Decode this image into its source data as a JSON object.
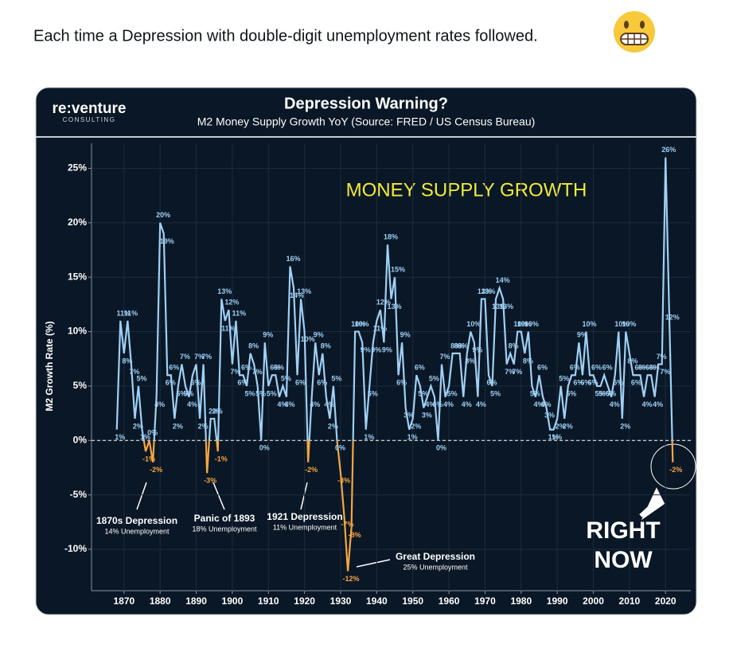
{
  "tweet_text": "Each time a Depression with double-digit unemployment rates followed.",
  "chart_data": {
    "type": "line",
    "brand": "re:venture",
    "brand_sub": "CONSULTING",
    "title": "Depression Warning?",
    "subtitle": "M2 Money Supply Growth YoY  (Source: FRED / US Census Bureau)",
    "y_label": "M2 Growth Rate (%)",
    "headline": "MONEY SUPPLY GROWTH",
    "annotations": [
      {
        "text": "1870s Depression",
        "note": "14% Unemployment"
      },
      {
        "text": "Panic of 1893",
        "note": "18% Unemployment"
      },
      {
        "text": "1921 Depression",
        "note": "11% Unemployment"
      },
      {
        "text": "Great Depression",
        "note": "25% Unemployment"
      }
    ],
    "callout": [
      "RIGHT",
      "NOW"
    ],
    "x": [
      1868,
      1869,
      1870,
      1871,
      1872,
      1873,
      1874,
      1875,
      1876,
      1877,
      1878,
      1879,
      1880,
      1881,
      1882,
      1883,
      1884,
      1885,
      1886,
      1887,
      1888,
      1889,
      1890,
      1891,
      1892,
      1893,
      1894,
      1895,
      1896,
      1897,
      1898,
      1899,
      1900,
      1901,
      1902,
      1903,
      1904,
      1905,
      1906,
      1907,
      1908,
      1909,
      1910,
      1911,
      1912,
      1913,
      1914,
      1915,
      1916,
      1917,
      1918,
      1919,
      1920,
      1921,
      1922,
      1923,
      1924,
      1925,
      1926,
      1927,
      1928,
      1929,
      1930,
      1931,
      1932,
      1933,
      1934,
      1935,
      1936,
      1937,
      1938,
      1939,
      1940,
      1941,
      1942,
      1943,
      1944,
      1945,
      1946,
      1947,
      1948,
      1949,
      1950,
      1951,
      1952,
      1953,
      1954,
      1955,
      1956,
      1957,
      1958,
      1959,
      1960,
      1961,
      1962,
      1963,
      1964,
      1965,
      1966,
      1967,
      1968,
      1969,
      1970,
      1971,
      1972,
      1973,
      1974,
      1975,
      1976,
      1977,
      1978,
      1979,
      1980,
      1981,
      1982,
      1983,
      1984,
      1985,
      1986,
      1987,
      1988,
      1989,
      1990,
      1991,
      1992,
      1993,
      1994,
      1995,
      1996,
      1997,
      1998,
      1999,
      2000,
      2001,
      2002,
      2003,
      2004,
      2005,
      2006,
      2007,
      2008,
      2009,
      2010,
      2011,
      2012,
      2013,
      2014,
      2015,
      2016,
      2017,
      2018,
      2019,
      2020,
      2021,
      2022
    ],
    "series": [
      {
        "name": "M2 Growth Rate",
        "color": "#9fd0f5",
        "negative_color": "#f5a742",
        "values": [
          1,
          11,
          8,
          11,
          7,
          2,
          5,
          1,
          -1,
          0,
          -2,
          4,
          20,
          19,
          6,
          6,
          2,
          5,
          7,
          5,
          4,
          6,
          7,
          2,
          7,
          -3,
          2,
          2,
          -1,
          13,
          11,
          12,
          7,
          11,
          6,
          6,
          5,
          8,
          7,
          5,
          0,
          9,
          5,
          6,
          6,
          4,
          5,
          4,
          16,
          14,
          6,
          13,
          10,
          -2,
          4,
          9,
          6,
          8,
          4,
          2,
          5,
          0,
          -3,
          -7,
          -12,
          -8,
          10,
          10,
          9,
          1,
          5,
          9,
          11,
          12,
          9,
          18,
          13,
          15,
          6,
          9,
          3,
          1,
          2,
          6,
          5,
          3,
          4,
          5,
          4,
          0,
          7,
          4,
          5,
          8,
          8,
          8,
          4,
          8,
          10,
          9,
          4,
          13,
          13,
          6,
          5,
          13,
          14,
          13,
          7,
          8,
          7,
          10,
          10,
          8,
          10,
          5,
          4,
          6,
          4,
          3,
          1,
          1,
          2,
          5,
          2,
          5,
          6,
          6,
          9,
          6,
          10,
          6,
          6,
          5,
          5,
          6,
          5,
          4,
          6,
          10,
          2,
          10,
          8,
          6,
          6,
          6,
          4,
          6,
          6,
          4,
          7,
          7,
          26,
          12,
          -2
        ],
        "value_labels": [
          "1%",
          "11%",
          "8%",
          "11%",
          "7%",
          "2%",
          "5%",
          "1%",
          "-1%",
          "0%",
          "-2%",
          "4%",
          "20%",
          "19%",
          "6%",
          "6%",
          "2%",
          "5%",
          "7%",
          "5%",
          "4%",
          "6%",
          "7%",
          "2%",
          "7%",
          "-3%",
          "2%",
          "2%",
          "-1%",
          "13%",
          "11%",
          "12%",
          "7%",
          "11%",
          "6%",
          "6%",
          "5%",
          "8%",
          "7%",
          "5%",
          "0%",
          "9%",
          "5%",
          "6%",
          "6%",
          "4%",
          "5%",
          "4%",
          "16%",
          "14%",
          "6%",
          "13%",
          "10%",
          "-2%",
          "4%",
          "9%",
          "6%",
          "8%",
          "4%",
          "2%",
          "5%",
          "0%",
          "-3%",
          "-7%",
          "-12%",
          "-8%",
          "10%",
          "10%",
          "9%",
          "1%",
          "5%",
          "9%",
          "11%",
          "12%",
          "9%",
          "18%",
          "13%",
          "15%",
          "6%",
          "9%",
          "3%",
          "1%",
          "2%",
          "6%",
          "5%",
          "3%",
          "4%",
          "5%",
          "4%",
          "0%",
          "7%",
          "4%",
          "5%",
          "8%",
          "8%",
          "8%",
          "4%",
          "8%",
          "10%",
          "9%",
          "4%",
          "13%",
          "13%",
          "6%",
          "5%",
          "13%",
          "14%",
          "13%",
          "7%",
          "8%",
          "7%",
          "10%",
          "10%",
          "8%",
          "10%",
          "5%",
          "4%",
          "6%",
          "4%",
          "3%",
          "1%",
          "1%",
          "2%",
          "5%",
          "2%",
          "5%",
          "6%",
          "6%",
          "9%",
          "6%",
          "10%",
          "6%",
          "6%",
          "5%",
          "5%",
          "6%",
          "5%",
          "4%",
          "6%",
          "10%",
          "2%",
          "10%",
          "8%",
          "6%",
          "6%",
          "6%",
          "4%",
          "6%",
          "6%",
          "4%",
          "7%",
          "7%",
          "26%",
          "12%",
          "-2%"
        ]
      }
    ],
    "xlim": [
      1861,
      2027
    ],
    "ylim": [
      -13.8,
      27.3
    ],
    "xticks": [
      1870,
      1880,
      1890,
      1900,
      1910,
      1920,
      1930,
      1940,
      1950,
      1960,
      1970,
      1980,
      1990,
      2000,
      2010,
      2020
    ],
    "yticks": [
      {
        "value": -10,
        "label": "-10%"
      },
      {
        "value": -5,
        "label": "-5%"
      },
      {
        "value": 0,
        "label": "0%"
      },
      {
        "value": 5,
        "label": "5%"
      },
      {
        "value": 10,
        "label": "10%"
      },
      {
        "value": 15,
        "label": "15%"
      },
      {
        "value": 20,
        "label": "20%"
      },
      {
        "value": 25,
        "label": "25%"
      }
    ],
    "grid": true
  }
}
